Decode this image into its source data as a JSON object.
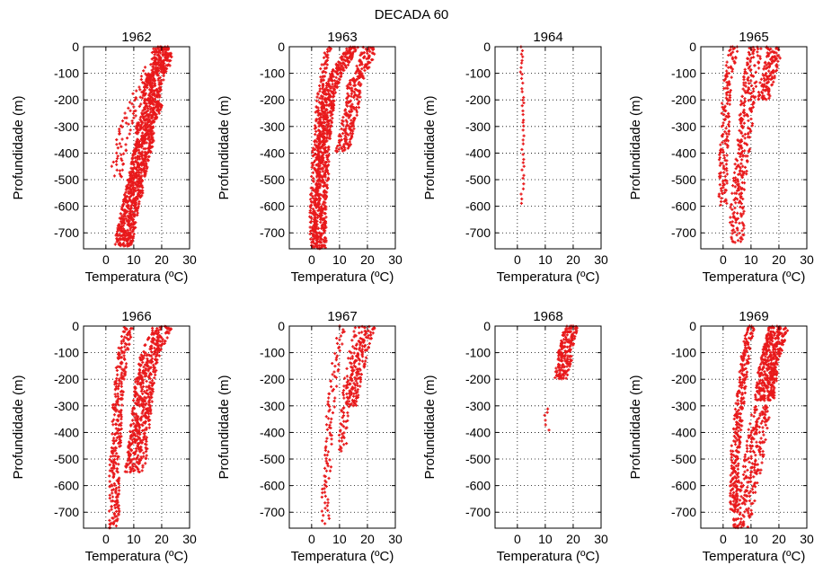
{
  "figure": {
    "suptitle": "DECADA 60"
  },
  "chart_data": [
    {
      "type": "scatter",
      "title": "1962",
      "xlabel": "Temperatura (ºC)",
      "ylabel": "Profundidade (m)",
      "xlim": [
        -8,
        30
      ],
      "ylim": [
        -760,
        0
      ],
      "xticks": [
        "0",
        "10",
        "20",
        "30"
      ],
      "yticks": [
        "0",
        "-100",
        "-200",
        "-300",
        "-400",
        "-500",
        "-600",
        "-700"
      ],
      "grid": true,
      "color": "#e8191b",
      "profiles": [
        {
          "d": [
            [
              0,
              20
            ],
            [
              -20,
              20
            ],
            [
              -40,
              20.5
            ],
            [
              -60,
              20
            ],
            [
              -80,
              20
            ],
            [
              -100,
              18
            ],
            [
              -150,
              17
            ],
            [
              -200,
              16
            ],
            [
              -220,
              17
            ],
            [
              -250,
              16
            ],
            [
              -300,
              14
            ],
            [
              -350,
              14
            ],
            [
              -400,
              13
            ],
            [
              -450,
              12
            ],
            [
              -500,
              11
            ],
            [
              -550,
              10
            ],
            [
              -600,
              9
            ],
            [
              -650,
              8
            ],
            [
              -700,
              7
            ],
            [
              -750,
              6
            ]
          ],
          "n": 22,
          "j": 3.2
        },
        {
          "d": [
            [
              0,
              19
            ],
            [
              -40,
              18
            ],
            [
              -80,
              16
            ],
            [
              -120,
              14
            ],
            [
              -160,
              12
            ],
            [
              -200,
              11
            ],
            [
              -250,
              9
            ],
            [
              -300,
              7
            ],
            [
              -350,
              6
            ],
            [
              -400,
              5
            ],
            [
              -450,
              4
            ],
            [
              -500,
              4
            ]
          ],
          "n": 3,
          "j": 2.2
        }
      ]
    },
    {
      "type": "scatter",
      "title": "1963",
      "xlabel": "Temperatura (ºC)",
      "ylabel": "Profundidade (m)",
      "xlim": [
        -8,
        30
      ],
      "ylim": [
        -760,
        0
      ],
      "xticks": [
        "0",
        "10",
        "20",
        "30"
      ],
      "yticks": [
        "0",
        "-100",
        "-200",
        "-300",
        "-400",
        "-500",
        "-600",
        "-700"
      ],
      "grid": true,
      "color": "#e8191b",
      "profiles": [
        {
          "d": [
            [
              0,
              20
            ],
            [
              -30,
              20
            ],
            [
              -60,
              19
            ],
            [
              -100,
              17
            ],
            [
              -150,
              15
            ],
            [
              -200,
              15
            ],
            [
              -250,
              14
            ],
            [
              -300,
              13
            ],
            [
              -350,
              12
            ],
            [
              -400,
              11
            ]
          ],
          "n": 10,
          "j": 2.5
        },
        {
          "d": [
            [
              0,
              15
            ],
            [
              -50,
              12
            ],
            [
              -100,
              9
            ],
            [
              -150,
              7
            ],
            [
              -200,
              6
            ],
            [
              -300,
              5
            ],
            [
              -400,
              4
            ],
            [
              -500,
              4
            ],
            [
              -600,
              3
            ],
            [
              -700,
              3
            ],
            [
              -760,
              3
            ]
          ],
          "n": 14,
          "j": 2.2
        },
        {
          "d": [
            [
              0,
              6
            ],
            [
              -100,
              4
            ],
            [
              -200,
              3
            ],
            [
              -300,
              2
            ],
            [
              -400,
              1.5
            ],
            [
              -500,
              1
            ],
            [
              -600,
              0.5
            ],
            [
              -760,
              0.5
            ]
          ],
          "n": 4,
          "j": 1.2
        }
      ]
    },
    {
      "type": "scatter",
      "title": "1964",
      "xlabel": "Temperatura (ºC)",
      "ylabel": "Profundidade (m)",
      "xlim": [
        -8,
        30
      ],
      "ylim": [
        -760,
        0
      ],
      "xticks": [
        "0",
        "10",
        "20",
        "30"
      ],
      "yticks": [
        "0",
        "-100",
        "-200",
        "-300",
        "-400",
        "-500",
        "-600",
        "-700"
      ],
      "grid": true,
      "color": "#e8191b",
      "profiles": [
        {
          "d": [
            [
              0,
              1.5
            ],
            [
              -100,
              1.5
            ],
            [
              -200,
              2
            ],
            [
              -300,
              2
            ],
            [
              -400,
              2
            ],
            [
              -500,
              2
            ],
            [
              -600,
              1.5
            ]
          ],
          "n": 1,
          "j": 0.4
        }
      ]
    },
    {
      "type": "scatter",
      "title": "1965",
      "xlabel": "Temperatura (ºC)",
      "ylabel": "Profundidade (m)",
      "xlim": [
        -8,
        30
      ],
      "ylim": [
        -760,
        0
      ],
      "xticks": [
        "0",
        "10",
        "20",
        "30"
      ],
      "yticks": [
        "0",
        "-100",
        "-200",
        "-300",
        "-400",
        "-500",
        "-600",
        "-700"
      ],
      "grid": true,
      "color": "#e8191b",
      "profiles": [
        {
          "d": [
            [
              0,
              18
            ],
            [
              -40,
              18
            ],
            [
              -80,
              17
            ],
            [
              -120,
              16
            ],
            [
              -160,
              15
            ],
            [
              -200,
              15
            ]
          ],
          "n": 10,
          "j": 2.5
        },
        {
          "d": [
            [
              0,
              12
            ],
            [
              -100,
              10
            ],
            [
              -200,
              9
            ],
            [
              -300,
              8
            ],
            [
              -400,
              7
            ],
            [
              -500,
              6
            ],
            [
              -600,
              5
            ],
            [
              -700,
              5
            ],
            [
              -740,
              5
            ]
          ],
          "n": 6,
          "j": 2.5
        },
        {
          "d": [
            [
              0,
              4
            ],
            [
              -100,
              2
            ],
            [
              -200,
              1
            ],
            [
              -300,
              1
            ],
            [
              -400,
              0
            ],
            [
              -500,
              0
            ],
            [
              -600,
              0
            ]
          ],
          "n": 4,
          "j": 1.5
        }
      ]
    },
    {
      "type": "scatter",
      "title": "1966",
      "xlabel": "Temperatura (ºC)",
      "ylabel": "Profundidade (m)",
      "xlim": [
        -8,
        30
      ],
      "ylim": [
        -760,
        0
      ],
      "xticks": [
        "0",
        "10",
        "20",
        "30"
      ],
      "yticks": [
        "0",
        "-100",
        "-200",
        "-300",
        "-400",
        "-500",
        "-600",
        "-700"
      ],
      "grid": true,
      "color": "#e8191b",
      "profiles": [
        {
          "d": [
            [
              0,
              20
            ],
            [
              -20,
              20
            ],
            [
              -40,
              19
            ],
            [
              -60,
              18
            ],
            [
              -80,
              17
            ],
            [
              -100,
              16
            ],
            [
              -150,
              15
            ],
            [
              -200,
              14
            ],
            [
              -300,
              13
            ],
            [
              -400,
              12
            ],
            [
              -500,
              11
            ],
            [
              -550,
              10
            ]
          ],
          "n": 14,
          "j": 3.5
        },
        {
          "d": [
            [
              0,
              8
            ],
            [
              -100,
              6
            ],
            [
              -200,
              5
            ],
            [
              -300,
              4
            ],
            [
              -400,
              4
            ],
            [
              -500,
              3
            ],
            [
              -600,
              3
            ],
            [
              -700,
              3
            ],
            [
              -760,
              3
            ]
          ],
          "n": 6,
          "j": 1.8
        }
      ]
    },
    {
      "type": "scatter",
      "title": "1967",
      "xlabel": "Temperatura (ºC)",
      "ylabel": "Profundidade (m)",
      "xlim": [
        -8,
        30
      ],
      "ylim": [
        -760,
        0
      ],
      "xticks": [
        "0",
        "10",
        "20",
        "30"
      ],
      "yticks": [
        "0",
        "-100",
        "-200",
        "-300",
        "-400",
        "-500",
        "-600",
        "-700"
      ],
      "grid": true,
      "color": "#e8191b",
      "profiles": [
        {
          "d": [
            [
              0,
              21
            ],
            [
              -30,
              20
            ],
            [
              -60,
              19
            ],
            [
              -100,
              18
            ],
            [
              -150,
              17
            ],
            [
              -200,
              16
            ],
            [
              -250,
              15
            ],
            [
              -300,
              14
            ]
          ],
          "n": 7,
          "j": 2
        },
        {
          "d": [
            [
              0,
              17
            ],
            [
              -100,
              15
            ],
            [
              -200,
              13
            ],
            [
              -300,
              12
            ],
            [
              -400,
              11
            ],
            [
              -470,
              11
            ]
          ],
          "n": 3,
          "j": 1.5
        },
        {
          "d": [
            [
              0,
              11
            ],
            [
              -100,
              9
            ],
            [
              -200,
              8
            ],
            [
              -300,
              7
            ],
            [
              -400,
              6
            ],
            [
              -500,
              6
            ],
            [
              -600,
              5
            ],
            [
              -700,
              5
            ],
            [
              -750,
              5
            ]
          ],
          "n": 2,
          "j": 1.3
        }
      ]
    },
    {
      "type": "scatter",
      "title": "1968",
      "xlabel": "Temperatura (ºC)",
      "ylabel": "Profundidade (m)",
      "xlim": [
        -8,
        30
      ],
      "ylim": [
        -760,
        0
      ],
      "xticks": [
        "0",
        "10",
        "20",
        "30"
      ],
      "yticks": [
        "0",
        "-100",
        "-200",
        "-300",
        "-400",
        "-500",
        "-600",
        "-700"
      ],
      "grid": true,
      "color": "#e8191b",
      "profiles": [
        {
          "d": [
            [
              0,
              19
            ],
            [
              -20,
              19
            ],
            [
              -50,
              18
            ],
            [
              -80,
              18
            ],
            [
              -100,
              17
            ],
            [
              -130,
              17
            ],
            [
              -160,
              16
            ],
            [
              -200,
              16
            ]
          ],
          "n": 14,
          "j": 2.5
        },
        {
          "d": [
            [
              -300,
              12
            ],
            [
              -330,
              10
            ],
            [
              -400,
              11
            ]
          ],
          "n": 1,
          "j": 0.5
        }
      ]
    },
    {
      "type": "scatter",
      "title": "1969",
      "xlabel": "Temperatura (ºC)",
      "ylabel": "Profundidade (m)",
      "xlim": [
        -8,
        30
      ],
      "ylim": [
        -760,
        0
      ],
      "xticks": [
        "0",
        "10",
        "20",
        "30"
      ],
      "yticks": [
        "0",
        "-100",
        "-200",
        "-300",
        "-400",
        "-500",
        "-600",
        "-700"
      ],
      "grid": true,
      "color": "#e8191b",
      "profiles": [
        {
          "d": [
            [
              0,
              20
            ],
            [
              -40,
              19
            ],
            [
              -80,
              18
            ],
            [
              -120,
              17
            ],
            [
              -160,
              16
            ],
            [
              -200,
              16
            ],
            [
              -240,
              15
            ],
            [
              -280,
              15
            ]
          ],
          "n": 22,
          "j": 3.5
        },
        {
          "d": [
            [
              -300,
              14
            ],
            [
              -350,
              13
            ],
            [
              -400,
              12
            ],
            [
              -450,
              12
            ],
            [
              -500,
              11
            ],
            [
              -550,
              10
            ],
            [
              -600,
              9
            ],
            [
              -650,
              8
            ],
            [
              -700,
              7
            ],
            [
              -760,
              6
            ]
          ],
          "n": 8,
          "j": 3.5
        },
        {
          "d": [
            [
              0,
              10
            ],
            [
              -100,
              8
            ],
            [
              -200,
              7
            ],
            [
              -300,
              6
            ],
            [
              -400,
              5
            ],
            [
              -500,
              4
            ],
            [
              -600,
              4
            ],
            [
              -700,
              4
            ]
          ],
          "n": 6,
          "j": 1.5
        }
      ]
    }
  ]
}
